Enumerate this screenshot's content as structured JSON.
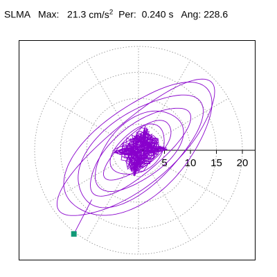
{
  "header": {
    "station": "SLMA",
    "max_label": "Max:",
    "max_value": "21.3",
    "max_unit_base": "cm/s",
    "max_unit_exp": "2",
    "period_label": "Per:",
    "period_value": "0.240 s",
    "angle_label": "Ang:",
    "angle_value": "228.6"
  },
  "chart_data": {
    "type": "polar-orbit",
    "title": "",
    "radial_ticks": [
      "5",
      "10",
      "15",
      "20"
    ],
    "radial_values": [
      5,
      10,
      15,
      20
    ],
    "spoke_angles_deg": [
      0,
      30,
      60,
      90,
      120,
      150,
      180,
      210,
      240,
      270,
      300,
      330
    ],
    "r_max": 20,
    "grid": true,
    "max_amplitude": 21.3,
    "max_angle_deg": 228.6,
    "orbit_color": "#8800cc",
    "marker_color": "#119977",
    "grid_color": "#888888"
  }
}
